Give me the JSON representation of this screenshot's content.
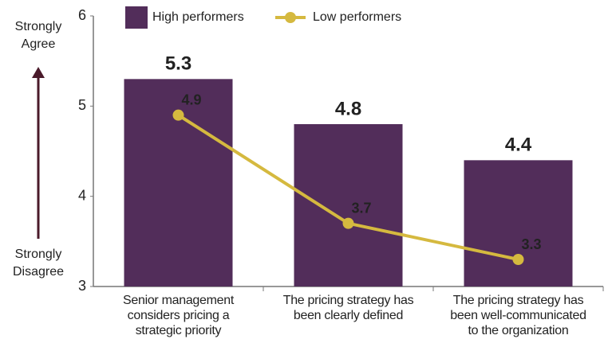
{
  "chart_data": {
    "type": "bar_line",
    "categories": [
      [
        "Senior management",
        "considers pricing a",
        "strategic priority"
      ],
      [
        "The pricing strategy has",
        "been clearly defined"
      ],
      [
        "The pricing strategy has",
        "been well-communicated",
        "to the organization"
      ]
    ],
    "series": [
      {
        "name": "High performers",
        "type": "bar",
        "color": "#522d5a",
        "values": [
          5.3,
          4.8,
          4.4
        ]
      },
      {
        "name": "Low performers",
        "type": "line",
        "color": "#d5b93f",
        "values": [
          4.9,
          3.7,
          3.3
        ]
      }
    ],
    "ylim": [
      3,
      6
    ],
    "yticks": [
      3,
      4,
      5,
      6
    ],
    "annotations": [
      [
        "Strongly",
        "Agree"
      ],
      [
        "Strongly",
        "Disagree"
      ]
    ],
    "annotation_color": "#4a1a2a"
  }
}
